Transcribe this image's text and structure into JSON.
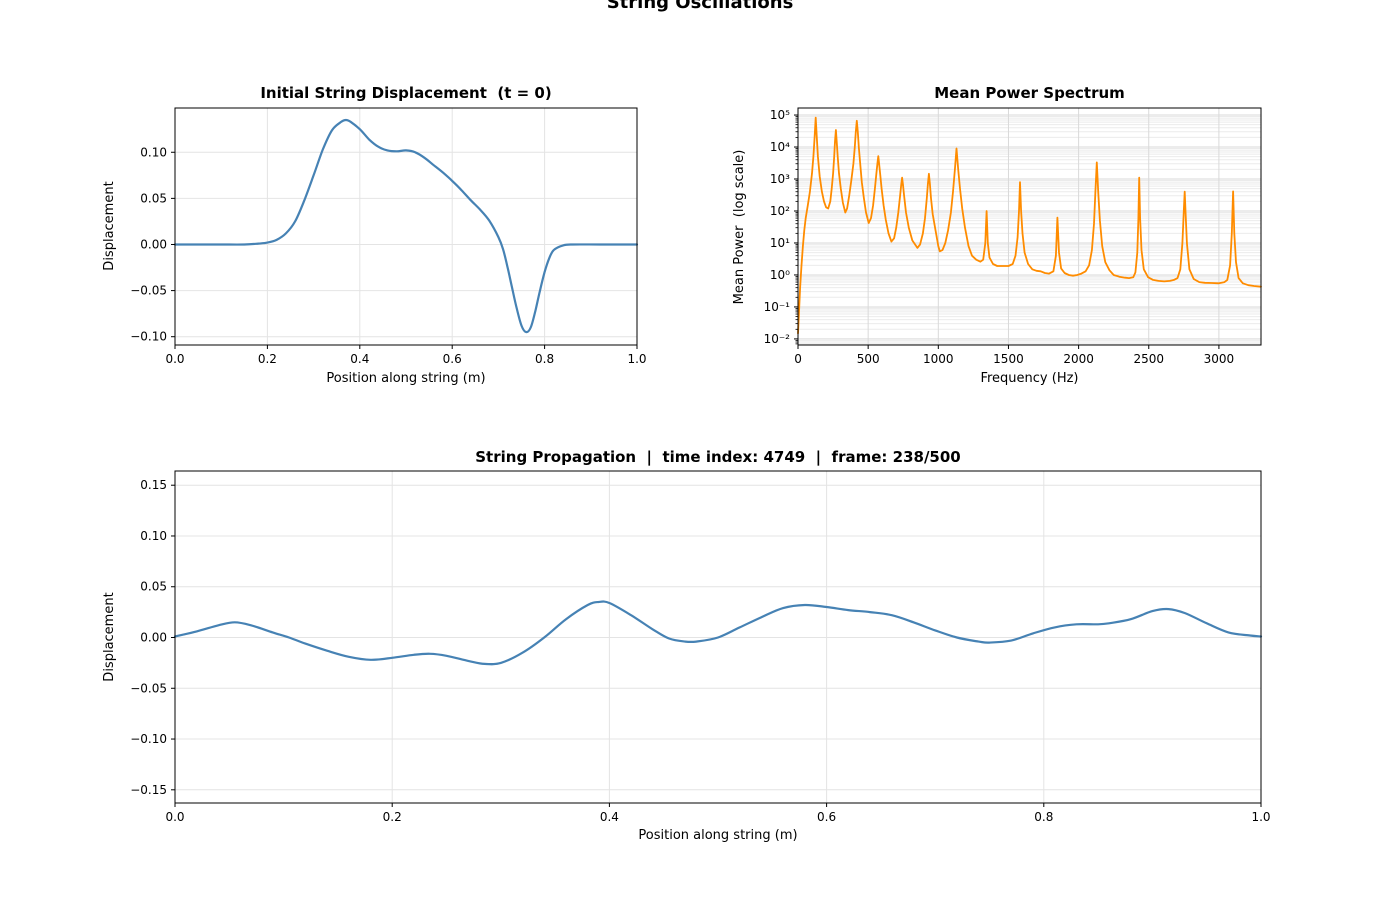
{
  "page": {
    "suptitle": "String Oscillations",
    "background": "#ffffff"
  },
  "chart_data": [
    {
      "id": "initial-displacement",
      "type": "line",
      "title": "Initial String Displacement  (t = 0)",
      "xlabel": "Position along string (m)",
      "ylabel": "Displacement",
      "color": "#4682B4",
      "linewidth": 2.2,
      "smooth": true,
      "yscale": "linear",
      "xlim": [
        0,
        1
      ],
      "ylim": [
        -0.109,
        0.148
      ],
      "xticks": [
        0.0,
        0.2,
        0.4,
        0.6,
        0.8,
        1.0
      ],
      "xtick_labels": [
        "0.0",
        "0.2",
        "0.4",
        "0.6",
        "0.8",
        "1.0"
      ],
      "yticks": [
        -0.1,
        -0.05,
        0.0,
        0.05,
        0.1
      ],
      "ytick_labels": [
        "−0.10",
        "−0.05",
        "0.00",
        "0.05",
        "0.10"
      ],
      "grid": true,
      "grid_color": "#e4e4e4",
      "points": [
        [
          0,
          0
        ],
        [
          0.05,
          0
        ],
        [
          0.1,
          0
        ],
        [
          0.15,
          0
        ],
        [
          0.18,
          0.001
        ],
        [
          0.2,
          0.002
        ],
        [
          0.22,
          0.005
        ],
        [
          0.24,
          0.012
        ],
        [
          0.26,
          0.025
        ],
        [
          0.28,
          0.048
        ],
        [
          0.3,
          0.075
        ],
        [
          0.32,
          0.103
        ],
        [
          0.34,
          0.124
        ],
        [
          0.36,
          0.133
        ],
        [
          0.37,
          0.135
        ],
        [
          0.38,
          0.133
        ],
        [
          0.4,
          0.125
        ],
        [
          0.42,
          0.114
        ],
        [
          0.44,
          0.106
        ],
        [
          0.46,
          0.102
        ],
        [
          0.48,
          0.101
        ],
        [
          0.5,
          0.102
        ],
        [
          0.52,
          0.1
        ],
        [
          0.54,
          0.094
        ],
        [
          0.56,
          0.086
        ],
        [
          0.58,
          0.078
        ],
        [
          0.6,
          0.069
        ],
        [
          0.62,
          0.059
        ],
        [
          0.64,
          0.048
        ],
        [
          0.66,
          0.038
        ],
        [
          0.68,
          0.026
        ],
        [
          0.7,
          0.008
        ],
        [
          0.71,
          -0.005
        ],
        [
          0.72,
          -0.025
        ],
        [
          0.73,
          -0.048
        ],
        [
          0.74,
          -0.07
        ],
        [
          0.75,
          -0.088
        ],
        [
          0.76,
          -0.095
        ],
        [
          0.77,
          -0.09
        ],
        [
          0.78,
          -0.072
        ],
        [
          0.79,
          -0.05
        ],
        [
          0.8,
          -0.03
        ],
        [
          0.81,
          -0.015
        ],
        [
          0.82,
          -0.006
        ],
        [
          0.84,
          -0.001
        ],
        [
          0.86,
          0
        ],
        [
          0.92,
          0
        ],
        [
          1,
          0
        ]
      ]
    },
    {
      "id": "power-spectrum",
      "type": "line",
      "title": "Mean Power Spectrum",
      "xlabel": "Frequency (Hz)",
      "ylabel": "Mean Power  (log scale)",
      "color": "#FF8C00",
      "linewidth": 1.8,
      "smooth": false,
      "yscale": "log",
      "xlim": [
        0,
        3300
      ],
      "ylim": [
        -2.19,
        5.22
      ],
      "xticks": [
        0,
        500,
        1000,
        1500,
        2000,
        2500,
        3000
      ],
      "xtick_labels": [
        "0",
        "500",
        "1000",
        "1500",
        "2000",
        "2500",
        "3000"
      ],
      "yticks": [
        5,
        4,
        3,
        2,
        1,
        0,
        -1,
        -2
      ],
      "ytick_labels": [
        "10⁵",
        "10⁴",
        "10³",
        "10²",
        "10¹",
        "10⁰",
        "10⁻¹",
        "10⁻²"
      ],
      "grid": true,
      "grid_color": "#d9d9d9",
      "minor_grid": true,
      "minor_grid_color": "#ebebeb",
      "peak_frequencies_hz": [
        126,
        270,
        419,
        572,
        742,
        933,
        1130,
        1344,
        1582,
        1849,
        2130,
        2432,
        2756,
        3101
      ],
      "peak_powers": [
        83000,
        34000,
        66000,
        5200,
        1100,
        1450,
        9000,
        100,
        800,
        62,
        3300,
        1100,
        400,
        410
      ],
      "points": [
        [
          0,
          0.015
        ],
        [
          8,
          0.08
        ],
        [
          15,
          0.4
        ],
        [
          25,
          2
        ],
        [
          35,
          8
        ],
        [
          45,
          25
        ],
        [
          55,
          60
        ],
        [
          70,
          150
        ],
        [
          85,
          400
        ],
        [
          100,
          1500
        ],
        [
          110,
          5000
        ],
        [
          118,
          20000
        ],
        [
          126,
          83000
        ],
        [
          134,
          20000
        ],
        [
          142,
          5000
        ],
        [
          155,
          1200
        ],
        [
          170,
          400
        ],
        [
          185,
          200
        ],
        [
          200,
          130
        ],
        [
          215,
          120
        ],
        [
          230,
          200
        ],
        [
          240,
          500
        ],
        [
          250,
          1500
        ],
        [
          258,
          5000
        ],
        [
          264,
          15000
        ],
        [
          270,
          34000
        ],
        [
          276,
          15000
        ],
        [
          283,
          5000
        ],
        [
          292,
          1500
        ],
        [
          305,
          500
        ],
        [
          320,
          180
        ],
        [
          337,
          90
        ],
        [
          350,
          120
        ],
        [
          365,
          300
        ],
        [
          380,
          900
        ],
        [
          395,
          3000
        ],
        [
          405,
          10000
        ],
        [
          412,
          30000
        ],
        [
          419,
          66000
        ],
        [
          426,
          30000
        ],
        [
          433,
          10000
        ],
        [
          443,
          3000
        ],
        [
          455,
          800
        ],
        [
          470,
          250
        ],
        [
          485,
          90
        ],
        [
          504,
          42
        ],
        [
          520,
          60
        ],
        [
          535,
          150
        ],
        [
          548,
          500
        ],
        [
          558,
          1400
        ],
        [
          566,
          3000
        ],
        [
          572,
          5200
        ],
        [
          578,
          3000
        ],
        [
          586,
          1400
        ],
        [
          596,
          500
        ],
        [
          610,
          150
        ],
        [
          625,
          55
        ],
        [
          645,
          20
        ],
        [
          666,
          11
        ],
        [
          685,
          14
        ],
        [
          700,
          30
        ],
        [
          715,
          90
        ],
        [
          728,
          300
        ],
        [
          736,
          700
        ],
        [
          742,
          1100
        ],
        [
          748,
          700
        ],
        [
          756,
          300
        ],
        [
          770,
          90
        ],
        [
          790,
          30
        ],
        [
          815,
          12
        ],
        [
          851,
          7
        ],
        [
          870,
          9
        ],
        [
          890,
          20
        ],
        [
          905,
          60
        ],
        [
          918,
          250
        ],
        [
          926,
          700
        ],
        [
          933,
          1450
        ],
        [
          940,
          700
        ],
        [
          948,
          250
        ],
        [
          960,
          80
        ],
        [
          980,
          25
        ],
        [
          1000,
          8
        ],
        [
          1011,
          5.5
        ],
        [
          1030,
          6
        ],
        [
          1050,
          10
        ],
        [
          1070,
          25
        ],
        [
          1090,
          90
        ],
        [
          1105,
          400
        ],
        [
          1118,
          2000
        ],
        [
          1130,
          9000
        ],
        [
          1142,
          2000
        ],
        [
          1155,
          500
        ],
        [
          1170,
          120
        ],
        [
          1190,
          30
        ],
        [
          1215,
          8
        ],
        [
          1240,
          4
        ],
        [
          1270,
          3
        ],
        [
          1300,
          2.6
        ],
        [
          1320,
          3
        ],
        [
          1335,
          10
        ],
        [
          1344,
          100
        ],
        [
          1353,
          10
        ],
        [
          1365,
          3.5
        ],
        [
          1390,
          2.2
        ],
        [
          1420,
          1.9
        ],
        [
          1460,
          1.9
        ],
        [
          1500,
          1.9
        ],
        [
          1530,
          2.2
        ],
        [
          1550,
          4
        ],
        [
          1565,
          15
        ],
        [
          1575,
          100
        ],
        [
          1582,
          800
        ],
        [
          1590,
          100
        ],
        [
          1600,
          20
        ],
        [
          1615,
          5
        ],
        [
          1640,
          2.2
        ],
        [
          1670,
          1.5
        ],
        [
          1700,
          1.35
        ],
        [
          1730,
          1.3
        ],
        [
          1760,
          1.15
        ],
        [
          1790,
          1.1
        ],
        [
          1820,
          1.3
        ],
        [
          1838,
          4
        ],
        [
          1849,
          62
        ],
        [
          1860,
          5
        ],
        [
          1875,
          1.6
        ],
        [
          1900,
          1.15
        ],
        [
          1930,
          1.0
        ],
        [
          1960,
          0.95
        ],
        [
          1990,
          1.0
        ],
        [
          2020,
          1.1
        ],
        [
          2050,
          1.3
        ],
        [
          2075,
          2
        ],
        [
          2095,
          6
        ],
        [
          2110,
          40
        ],
        [
          2120,
          400
        ],
        [
          2130,
          3300
        ],
        [
          2140,
          400
        ],
        [
          2152,
          50
        ],
        [
          2168,
          8
        ],
        [
          2190,
          2.5
        ],
        [
          2220,
          1.4
        ],
        [
          2250,
          1.0
        ],
        [
          2290,
          0.88
        ],
        [
          2330,
          0.82
        ],
        [
          2360,
          0.8
        ],
        [
          2390,
          0.85
        ],
        [
          2405,
          1.2
        ],
        [
          2418,
          5
        ],
        [
          2426,
          60
        ],
        [
          2432,
          1100
        ],
        [
          2438,
          60
        ],
        [
          2448,
          6
        ],
        [
          2465,
          1.5
        ],
        [
          2495,
          0.85
        ],
        [
          2530,
          0.7
        ],
        [
          2570,
          0.65
        ],
        [
          2610,
          0.63
        ],
        [
          2650,
          0.65
        ],
        [
          2680,
          0.7
        ],
        [
          2705,
          0.8
        ],
        [
          2725,
          1.5
        ],
        [
          2740,
          10
        ],
        [
          2750,
          100
        ],
        [
          2756,
          400
        ],
        [
          2762,
          100
        ],
        [
          2772,
          10
        ],
        [
          2790,
          1.5
        ],
        [
          2820,
          0.75
        ],
        [
          2860,
          0.6
        ],
        [
          2900,
          0.57
        ],
        [
          2950,
          0.56
        ],
        [
          3000,
          0.55
        ],
        [
          3040,
          0.6
        ],
        [
          3060,
          0.7
        ],
        [
          3080,
          2
        ],
        [
          3092,
          20
        ],
        [
          3101,
          410
        ],
        [
          3110,
          20
        ],
        [
          3122,
          2.5
        ],
        [
          3140,
          0.8
        ],
        [
          3170,
          0.55
        ],
        [
          3210,
          0.48
        ],
        [
          3250,
          0.45
        ],
        [
          3300,
          0.43
        ]
      ]
    },
    {
      "id": "string-propagation",
      "type": "line",
      "title": "String Propagation  |  time index: 4749  |  frame: 238/500",
      "time_index": 4749,
      "frame_current": 238,
      "frame_total": 500,
      "xlabel": "Position along string (m)",
      "ylabel": "Displacement",
      "color": "#4682B4",
      "linewidth": 2.2,
      "smooth": true,
      "yscale": "linear",
      "xlim": [
        0,
        1
      ],
      "ylim": [
        -0.163,
        0.164
      ],
      "xticks": [
        0.0,
        0.2,
        0.4,
        0.6,
        0.8,
        1.0
      ],
      "xtick_labels": [
        "0.0",
        "0.2",
        "0.4",
        "0.6",
        "0.8",
        "1.0"
      ],
      "yticks": [
        -0.15,
        -0.1,
        -0.05,
        0.0,
        0.05,
        0.1,
        0.15
      ],
      "ytick_labels": [
        "−0.15",
        "−0.10",
        "−0.05",
        "0.00",
        "0.05",
        "0.10",
        "0.15"
      ],
      "grid": true,
      "grid_color": "#e4e4e4",
      "points": [
        [
          0,
          0.001
        ],
        [
          0.02,
          0.006
        ],
        [
          0.04,
          0.012
        ],
        [
          0.055,
          0.015
        ],
        [
          0.07,
          0.012
        ],
        [
          0.09,
          0.005
        ],
        [
          0.105,
          0
        ],
        [
          0.12,
          -0.006
        ],
        [
          0.14,
          -0.013
        ],
        [
          0.16,
          -0.019
        ],
        [
          0.18,
          -0.022
        ],
        [
          0.2,
          -0.02
        ],
        [
          0.22,
          -0.017
        ],
        [
          0.235,
          -0.016
        ],
        [
          0.25,
          -0.018
        ],
        [
          0.27,
          -0.023
        ],
        [
          0.285,
          -0.026
        ],
        [
          0.3,
          -0.025
        ],
        [
          0.32,
          -0.015
        ],
        [
          0.34,
          0
        ],
        [
          0.36,
          0.018
        ],
        [
          0.38,
          0.032
        ],
        [
          0.39,
          0.035
        ],
        [
          0.4,
          0.034
        ],
        [
          0.42,
          0.022
        ],
        [
          0.44,
          0.008
        ],
        [
          0.455,
          -0.001
        ],
        [
          0.47,
          -0.004
        ],
        [
          0.48,
          -0.004
        ],
        [
          0.5,
          0
        ],
        [
          0.52,
          0.01
        ],
        [
          0.54,
          0.02
        ],
        [
          0.56,
          0.029
        ],
        [
          0.58,
          0.032
        ],
        [
          0.6,
          0.03
        ],
        [
          0.62,
          0.027
        ],
        [
          0.64,
          0.025
        ],
        [
          0.66,
          0.022
        ],
        [
          0.68,
          0.015
        ],
        [
          0.7,
          0.007
        ],
        [
          0.72,
          0
        ],
        [
          0.74,
          -0.004
        ],
        [
          0.75,
          -0.005
        ],
        [
          0.77,
          -0.003
        ],
        [
          0.79,
          0.004
        ],
        [
          0.81,
          0.01
        ],
        [
          0.83,
          0.013
        ],
        [
          0.85,
          0.013
        ],
        [
          0.86,
          0.014
        ],
        [
          0.88,
          0.018
        ],
        [
          0.9,
          0.026
        ],
        [
          0.915,
          0.028
        ],
        [
          0.93,
          0.024
        ],
        [
          0.95,
          0.014
        ],
        [
          0.97,
          0.005
        ],
        [
          0.99,
          0.002
        ],
        [
          1,
          0.001
        ]
      ]
    }
  ]
}
